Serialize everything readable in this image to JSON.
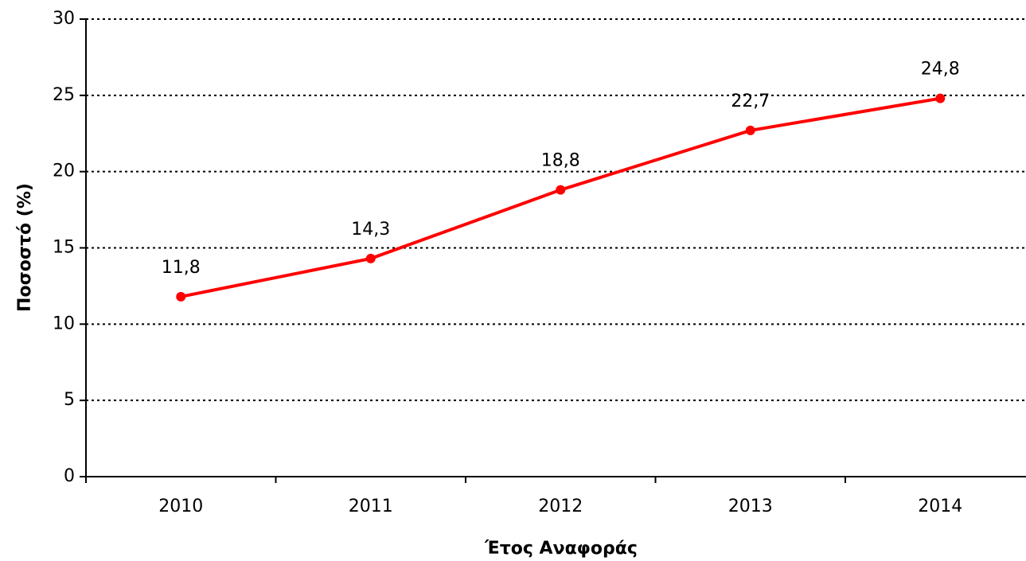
{
  "chart_data": {
    "type": "line",
    "categories": [
      "2010",
      "2011",
      "2012",
      "2013",
      "2014"
    ],
    "values": [
      11.8,
      14.3,
      18.8,
      22.7,
      24.8
    ],
    "value_labels": [
      "11,8",
      "14,3",
      "18,8",
      "22,7",
      "24,8"
    ],
    "color": "#ff0000",
    "ylim": [
      0,
      30
    ],
    "yticks": [
      0,
      5,
      10,
      15,
      20,
      25,
      30
    ],
    "grid": true,
    "ylabel": "Ποσοστό (%)",
    "xlabel": "Έτος Αναφοράς"
  }
}
